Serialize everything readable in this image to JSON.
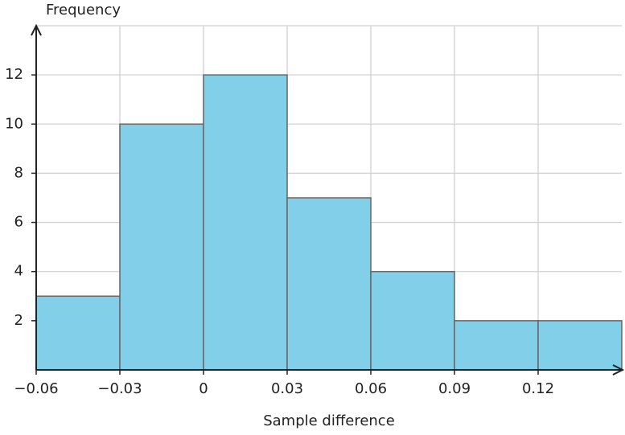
{
  "chart_data": {
    "type": "histogram",
    "x_label": "Sample difference",
    "y_label": "Frequency",
    "bins": [
      -0.06,
      -0.03,
      0,
      0.03,
      0.06,
      0.09,
      0.12,
      0.15
    ],
    "values": [
      3,
      10,
      12,
      7,
      4,
      2,
      2
    ],
    "color": "#81cfe8",
    "xlim": [
      -0.06,
      0.15
    ],
    "ylim": [
      0,
      14
    ],
    "xticks": [
      {
        "value": -0.06,
        "label": "−0.06"
      },
      {
        "value": -0.03,
        "label": "−0.03"
      },
      0,
      0.03,
      0.06,
      0.09,
      0.12
    ],
    "yticks": [
      2,
      4,
      6,
      8,
      10,
      12
    ],
    "grid": true
  }
}
